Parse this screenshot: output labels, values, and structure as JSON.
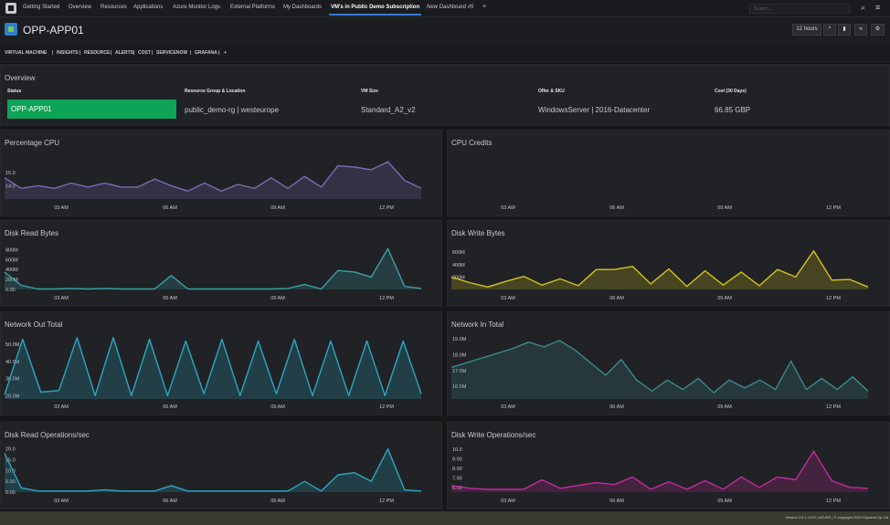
{
  "nav": {
    "tabs": [
      {
        "label": "Getting Started"
      },
      {
        "label": "Overview"
      },
      {
        "label": "Resources"
      },
      {
        "label": "Applications"
      },
      {
        "label": "Azure Monitor Logs"
      },
      {
        "label": "External Platforms"
      },
      {
        "label": "My Dashboards"
      },
      {
        "label": "VM's in Public Demo Subscription"
      },
      {
        "label": "New Dashboard #5"
      }
    ],
    "add_tab": "+",
    "search_placeholder": "Search...",
    "icons": [
      "logo-icon",
      "search-icon",
      "menu-icon"
    ]
  },
  "header": {
    "title": "OPP-APP01",
    "time_range": "12 hours",
    "icons": [
      "vm-icon",
      "chevron-up-icon",
      "book-icon",
      "share-icon",
      "gear-icon"
    ]
  },
  "subnav": {
    "items": [
      "VIRTUAL MACHINE",
      "INSIGHTS",
      "RESOURCE",
      "ALERTS",
      "COST",
      "SERVICENOW",
      "GRAFANA",
      "+"
    ],
    "separator": "|"
  },
  "overview": {
    "title": "Overview",
    "headers": [
      "Status",
      "Resource Group & Location",
      "VM Size",
      "Offer & SKU",
      "Cost (30 Days)"
    ],
    "values": [
      "OPP-APP01",
      "public_demo-rg | westeurope",
      "Standard_A2_v2",
      "WindowsServer | 2016-Datacenter",
      "66.85 GBP"
    ],
    "status_color": "#0ea458"
  },
  "x_ticks": [
    "03 AM",
    "06 AM",
    "09 AM",
    "12 PM"
  ],
  "charts": [
    {
      "title": "Percentage CPU",
      "type": "area",
      "color": "#7b6bb4",
      "yticks": [
        "15.0",
        "14.0"
      ],
      "ylim": [
        13,
        16.5
      ],
      "values": [
        14.6,
        13.8,
        14.0,
        13.8,
        14.2,
        13.9,
        14.2,
        13.9,
        13.9,
        14.5,
        14.0,
        13.6,
        14.2,
        13.6,
        14.1,
        13.8,
        14.6,
        13.8,
        14.7,
        13.9,
        15.5,
        15.4,
        15.2,
        15.8,
        14.4,
        13.8
      ]
    },
    {
      "title": "CPU Credits",
      "type": "area",
      "color": "#7b6bb4",
      "yticks": [],
      "ylim": [
        0,
        1
      ],
      "values": []
    },
    {
      "title": "Disk Read Bytes",
      "type": "area",
      "color": "#3aa0a8",
      "yticks": [
        "800M",
        "600M",
        "400M",
        "200M",
        "0.00"
      ],
      "ylim": [
        0,
        900
      ],
      "values": [
        350,
        80,
        10,
        10,
        20,
        10,
        20,
        10,
        10,
        10,
        280,
        10,
        10,
        10,
        10,
        10,
        10,
        20,
        100,
        10,
        380,
        350,
        250,
        820,
        60,
        20
      ]
    },
    {
      "title": "Disk Write Bytes",
      "type": "area",
      "color": "#d4c218",
      "yticks": [
        "600M",
        "400M",
        "200M"
      ],
      "ylim": [
        0,
        750
      ],
      "values": [
        200,
        110,
        40,
        130,
        210,
        70,
        170,
        60,
        320,
        320,
        370,
        90,
        330,
        50,
        300,
        70,
        280,
        60,
        320,
        200,
        620,
        150,
        160,
        40
      ]
    },
    {
      "title": "Network Out Total",
      "type": "area",
      "color": "#2aa7c0",
      "yticks": [
        "50.0M",
        "40.0M",
        "30.0M",
        "20.0M"
      ],
      "ylim": [
        18,
        56
      ],
      "values": [
        20.5,
        53,
        22,
        23,
        54,
        20,
        54,
        20,
        53,
        20,
        52,
        21,
        53,
        20,
        52,
        21,
        53,
        20,
        52,
        20,
        52,
        20,
        52,
        21
      ]
    },
    {
      "title": "Network In Total",
      "type": "area",
      "color": "#3a8a8a",
      "yticks": [
        "19.0M",
        "18.0M",
        "17.0M",
        "16.0M"
      ],
      "ylim": [
        15.2,
        19.3
      ],
      "values": [
        17.2,
        17.5,
        17.8,
        18.1,
        18.4,
        18.8,
        18.5,
        18.9,
        18.3,
        17.5,
        16.7,
        17.7,
        16.4,
        15.7,
        16.4,
        15.8,
        16.5,
        15.6,
        16.4,
        15.9,
        16.4,
        15.8,
        17.6,
        15.8,
        16.5,
        15.8,
        16.6,
        15.7
      ]
    },
    {
      "title": "Disk Read Operations/sec",
      "type": "area",
      "color": "#2aa7c0",
      "yticks": [
        "20.0",
        "15.0",
        "10.0",
        "5.00",
        "0.00"
      ],
      "ylim": [
        0,
        22
      ],
      "values": [
        18,
        2,
        0.5,
        0.5,
        0.5,
        0.5,
        1,
        0.5,
        0.5,
        0.5,
        3,
        0.5,
        0.5,
        0.5,
        0.5,
        0.5,
        0.5,
        0.5,
        5,
        0.5,
        8,
        9,
        5,
        20,
        1,
        0.5
      ]
    },
    {
      "title": "Disk Write Operations/sec",
      "type": "area",
      "color": "#c42a9c",
      "yticks": [
        "10.0",
        "9.00",
        "8.00",
        "7.00",
        "6.00"
      ],
      "ylim": [
        5.5,
        10.5
      ],
      "values": [
        6.2,
        5.9,
        5.8,
        5.8,
        5.8,
        6.8,
        5.9,
        6.2,
        6.5,
        6.3,
        7.1,
        5.8,
        6.6,
        5.8,
        6.7,
        5.8,
        7.1,
        6.0,
        7.1,
        6.8,
        9.8,
        6.7,
        6.0,
        5.9
      ]
    }
  ],
  "footer": {
    "text": "Version 4.5.1.1429 | AZURE | © copyright 2020 Squared Up Ltd"
  }
}
